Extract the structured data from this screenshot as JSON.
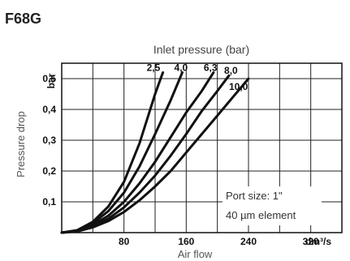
{
  "chart_data": {
    "type": "line",
    "title": "F68G",
    "subtitle": "Inlet pressure (bar)",
    "xlabel": "Air flow",
    "ylabel": "Pressure drop",
    "x_unit": "dm³/s",
    "y_unit": "bar",
    "xlim": [
      0,
      360
    ],
    "ylim": [
      0,
      0.55
    ],
    "x_ticks": [
      "80",
      "160",
      "240",
      "320"
    ],
    "y_ticks": [
      "0,1",
      "0,2",
      "0,3",
      "0,4",
      "0,5"
    ],
    "grid": true,
    "note_lines": [
      "Port size: 1\"",
      "40 µm element"
    ],
    "series": [
      {
        "name": "2,5",
        "points": [
          [
            0,
            0
          ],
          [
            20,
            0.008
          ],
          [
            40,
            0.035
          ],
          [
            60,
            0.085
          ],
          [
            80,
            0.165
          ],
          [
            100,
            0.29
          ],
          [
            120,
            0.45
          ],
          [
            130,
            0.52
          ]
        ]
      },
      {
        "name": "4,0",
        "points": [
          [
            0,
            0
          ],
          [
            20,
            0.007
          ],
          [
            40,
            0.03
          ],
          [
            60,
            0.07
          ],
          [
            80,
            0.13
          ],
          [
            100,
            0.215
          ],
          [
            120,
            0.32
          ],
          [
            140,
            0.43
          ],
          [
            155,
            0.52
          ]
        ]
      },
      {
        "name": "6,3",
        "points": [
          [
            0,
            0
          ],
          [
            20,
            0.006
          ],
          [
            40,
            0.025
          ],
          [
            60,
            0.055
          ],
          [
            80,
            0.1
          ],
          [
            100,
            0.16
          ],
          [
            120,
            0.23
          ],
          [
            140,
            0.31
          ],
          [
            160,
            0.39
          ],
          [
            180,
            0.46
          ],
          [
            195,
            0.52
          ]
        ]
      },
      {
        "name": "8,0",
        "points": [
          [
            0,
            0
          ],
          [
            20,
            0.005
          ],
          [
            40,
            0.02
          ],
          [
            60,
            0.045
          ],
          [
            80,
            0.082
          ],
          [
            100,
            0.13
          ],
          [
            120,
            0.185
          ],
          [
            140,
            0.25
          ],
          [
            160,
            0.32
          ],
          [
            180,
            0.395
          ],
          [
            200,
            0.46
          ],
          [
            215,
            0.51
          ]
        ]
      },
      {
        "name": "10,0",
        "points": [
          [
            0,
            0
          ],
          [
            20,
            0.004
          ],
          [
            40,
            0.017
          ],
          [
            60,
            0.038
          ],
          [
            80,
            0.067
          ],
          [
            100,
            0.105
          ],
          [
            120,
            0.15
          ],
          [
            140,
            0.2
          ],
          [
            160,
            0.26
          ],
          [
            180,
            0.32
          ],
          [
            200,
            0.38
          ],
          [
            220,
            0.44
          ],
          [
            240,
            0.5
          ]
        ]
      }
    ]
  }
}
